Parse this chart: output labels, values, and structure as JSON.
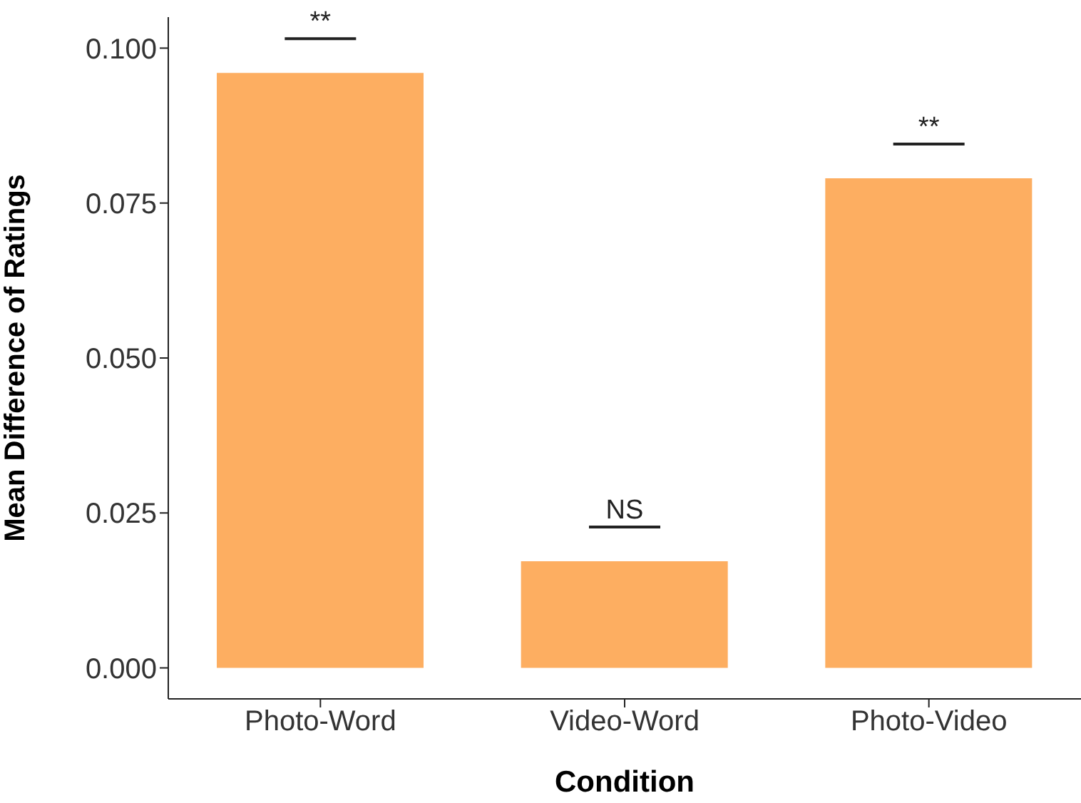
{
  "chart_data": {
    "type": "bar",
    "xlabel": "Condition",
    "ylabel": "Mean Difference of Ratings",
    "categories": [
      "Photo-Word",
      "Video-Word",
      "Photo-Video"
    ],
    "values": [
      0.096,
      0.0172,
      0.079
    ],
    "color": "#fdae61",
    "ylim": [
      -0.005,
      0.105
    ],
    "yticks": [
      {
        "value": 0,
        "label": "0.000"
      },
      {
        "value": 0.025,
        "label": "0.025"
      },
      {
        "value": 0.05,
        "label": "0.050"
      },
      {
        "value": 0.075,
        "label": "0.075"
      },
      {
        "value": 0.1,
        "label": "0.100"
      }
    ],
    "grid": false,
    "annotations": [
      "**",
      "NS",
      "**"
    ]
  }
}
